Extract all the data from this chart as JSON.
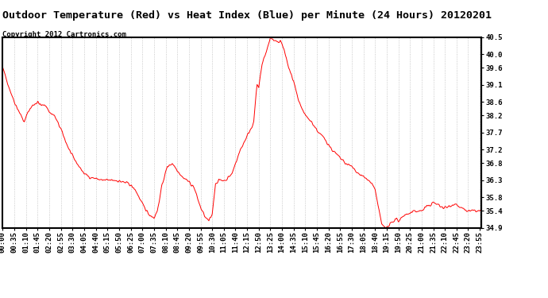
{
  "title": "Outdoor Temperature (Red) vs Heat Index (Blue) per Minute (24 Hours) 20120201",
  "copyright": "Copyright 2012 Cartronics.com",
  "line_color": "red",
  "background_color": "white",
  "grid_color": "#bbbbbb",
  "ylim": [
    34.9,
    40.5
  ],
  "yticks": [
    34.9,
    35.4,
    35.8,
    36.3,
    36.8,
    37.2,
    37.7,
    38.2,
    38.6,
    39.1,
    39.6,
    40.0,
    40.5
  ],
  "title_fontsize": 9.5,
  "copyright_fontsize": 6.5,
  "tick_fontsize": 6.5
}
